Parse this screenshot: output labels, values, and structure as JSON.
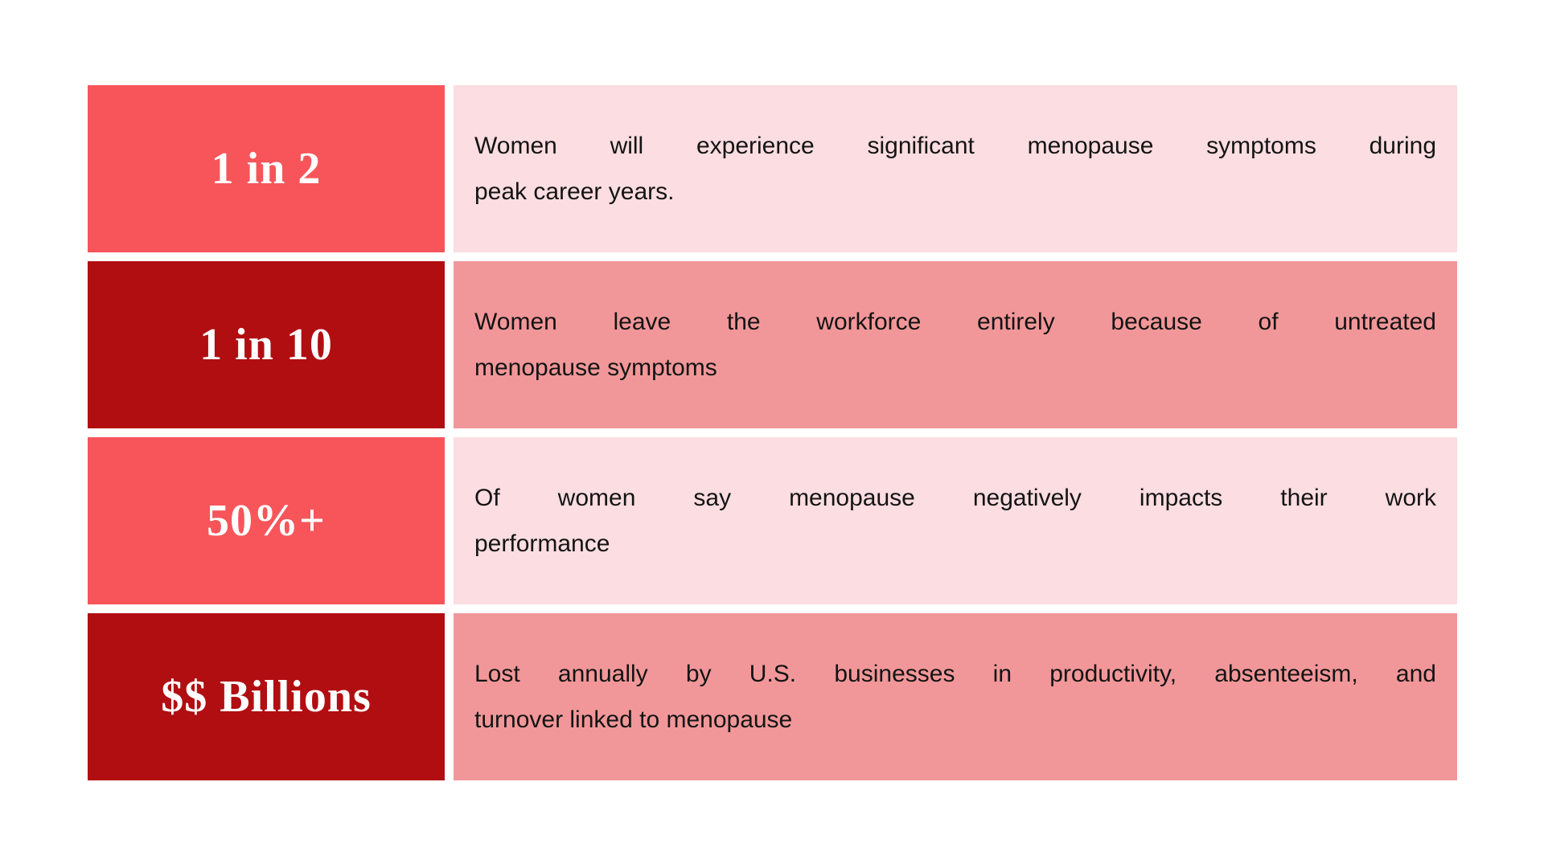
{
  "page": {
    "background": "#FFFFFF",
    "description": "Menopause workplace-impact statistics table"
  },
  "colors": {
    "stat-bright": "#F7555A",
    "stat-dark": "#B10E12",
    "desc-light": "#FCDDE1",
    "desc-medium": "#F29799",
    "stat-text": "#FFFFFF",
    "desc-text": "#141414"
  },
  "table": {
    "rows": [
      {
        "stat": "1 in 2",
        "theme": "bright",
        "text": "Women will experience significant menopause symptoms during peak career years.",
        "lines": [
          "Women will experience significant menopause symptoms during",
          "peak career years."
        ]
      },
      {
        "stat": "1 in 10",
        "theme": "dark",
        "text": "Women leave the workforce entirely because of untreated menopause symptoms",
        "lines": [
          "Women leave the workforce entirely because of untreated",
          "menopause symptoms"
        ]
      },
      {
        "stat": "50%+",
        "theme": "bright",
        "text": "Of women say menopause negatively impacts their work performance",
        "lines": [
          "Of women say menopause negatively impacts their work",
          "performance"
        ]
      },
      {
        "stat": "$$ Billions",
        "theme": "dark",
        "text": "Lost annually by U.S. businesses in productivity, absenteeism, and turnover linked to menopause",
        "lines": [
          "Lost annually by U.S. businesses in productivity, absenteeism, and",
          "turnover linked to menopause"
        ]
      }
    ]
  },
  "chart_data": {
    "type": "table",
    "title": "",
    "columns": [
      "statistic",
      "description"
    ],
    "rows": [
      [
        "1 in 2",
        "Women will experience significant menopause symptoms during peak career years."
      ],
      [
        "1 in 10",
        "Women leave the workforce entirely because of untreated menopause symptoms"
      ],
      [
        "50%+",
        "Of women say menopause negatively impacts their work performance"
      ],
      [
        "$$ Billions",
        "Lost annually by U.S. businesses in productivity, absenteeism, and turnover linked to menopause"
      ]
    ],
    "layout_hints": {
      "stat_cell_colors_alternate": [
        "#F7555A",
        "#B10E12"
      ],
      "desc_cell_colors_alternate": [
        "#FCDDE1",
        "#F29799"
      ],
      "grid": "white 11px gaps between cells",
      "text_alignment": "first line force-justified, last line left"
    }
  }
}
